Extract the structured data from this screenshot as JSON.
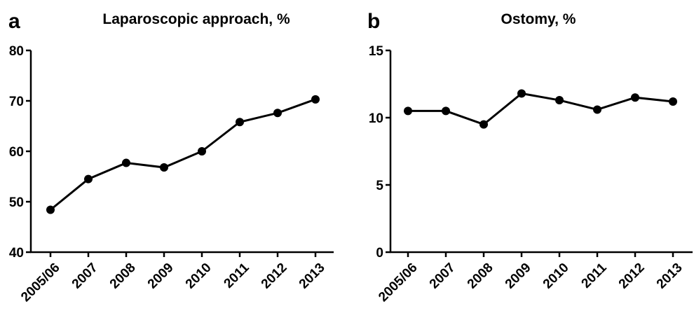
{
  "chart_data": [
    {
      "type": "line",
      "panel": "a",
      "title": "Laparoscopic approach, %",
      "xlabel": "",
      "ylabel": "",
      "categories": [
        "2005/06",
        "2007",
        "2008",
        "2009",
        "2010",
        "2011",
        "2012",
        "2013"
      ],
      "series": [
        {
          "values": [
            48.4,
            54.5,
            57.7,
            56.8,
            60.0,
            65.8,
            67.6,
            70.3
          ]
        }
      ],
      "ylim": [
        40,
        80
      ],
      "yticks": [
        "40",
        "50",
        "60",
        "70",
        "80"
      ],
      "grid": false,
      "color": "#000000"
    },
    {
      "type": "line",
      "panel": "b",
      "title": "Ostomy, %",
      "xlabel": "",
      "ylabel": "",
      "categories": [
        "2005/06",
        "2007",
        "2008",
        "2009",
        "2010",
        "2011",
        "2012",
        "2013"
      ],
      "series": [
        {
          "values": [
            10.5,
            10.5,
            9.5,
            11.8,
            11.3,
            10.6,
            11.5,
            11.2
          ]
        }
      ],
      "ylim": [
        0,
        15
      ],
      "yticks": [
        "0",
        "5",
        "10",
        "15"
      ],
      "grid": false,
      "color": "#000000"
    }
  ]
}
